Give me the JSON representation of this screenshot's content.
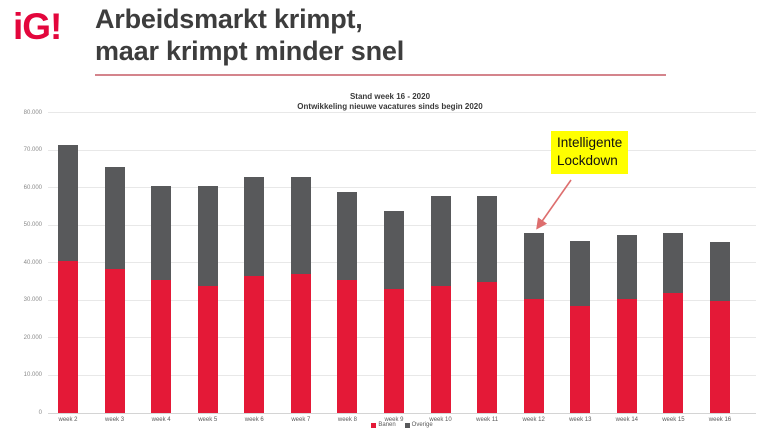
{
  "logo": {
    "text": "iG!",
    "color": "#e3063c"
  },
  "header": {
    "title": "Arbeidsmarkt krimpt,\nmaar krimpt minder snel",
    "divider_color": "#d4848c"
  },
  "chart_data": {
    "type": "bar",
    "stacked": true,
    "title": "Stand week 16 - 2020",
    "subtitle": "Ontwikkeling nieuwe vacatures sinds begin 2020",
    "categories": [
      "week 2",
      "week 3",
      "week 4",
      "week 5",
      "week 6",
      "week 7",
      "week 8",
      "week 9",
      "week 10",
      "week 11",
      "week 12",
      "week 13",
      "week 14",
      "week 15",
      "week 16"
    ],
    "series": [
      {
        "name": "Banen",
        "color": "#e41937",
        "values": [
          40500,
          38500,
          35500,
          34000,
          36500,
          37000,
          35500,
          33000,
          34000,
          35000,
          30500,
          28500,
          30500,
          32000,
          30000
        ]
      },
      {
        "name": "Overige",
        "color": "#58595b",
        "values": [
          31000,
          27000,
          25000,
          26500,
          26500,
          26000,
          23500,
          21000,
          24000,
          23000,
          17500,
          17500,
          17000,
          16000,
          15500
        ]
      }
    ],
    "totals": [
      71500,
      65500,
      60500,
      60500,
      63000,
      63000,
      59000,
      54000,
      58000,
      58000,
      48000,
      46000,
      47500,
      48000,
      45500
    ],
    "ylim": [
      0,
      80000
    ],
    "ytick_step": 10000,
    "ytick_labels": [
      "0",
      "10.000",
      "20.000",
      "30.000",
      "40.000",
      "50.000",
      "60.000",
      "70.000",
      "80.000"
    ],
    "grid": true,
    "legend_position": "bottom-center",
    "annotation": {
      "text": "Intelligente\nLockdown",
      "highlight_color": "#ffff00",
      "target_category": "week 12",
      "arrow_color": "#dd6e6e"
    }
  }
}
